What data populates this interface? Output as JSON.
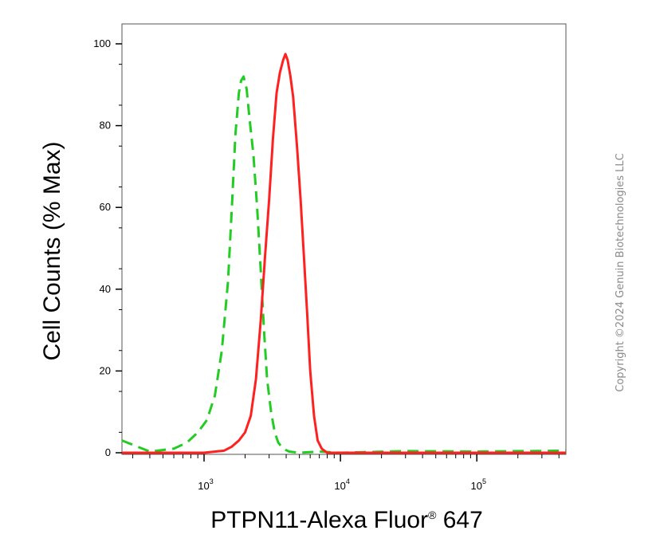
{
  "chart_data": {
    "type": "line",
    "title": "",
    "xlabel": "PTPN11-Alexa Fluor",
    "xlabel_mark": "®",
    "xlabel_suffix": " 647",
    "ylabel": "Cell Counts (% Max)",
    "x_scale": "log",
    "xlim": [
      250,
      450000
    ],
    "ylim": [
      0,
      100
    ],
    "y_ticks": [
      0,
      20,
      40,
      60,
      80,
      100
    ],
    "x_ticks": [
      {
        "base": "10",
        "exp": "3",
        "value": 1000
      },
      {
        "base": "10",
        "exp": "4",
        "value": 10000
      },
      {
        "base": "10",
        "exp": "5",
        "value": 100000
      }
    ],
    "grid": false,
    "legend": "none",
    "series": [
      {
        "color": "#22cc22",
        "style": "dashed",
        "x": [
          250,
          400,
          600,
          750,
          900,
          1050,
          1200,
          1350,
          1500,
          1600,
          1700,
          1800,
          1870,
          1950,
          2050,
          2150,
          2300,
          2450,
          2600,
          2750,
          2900,
          3100,
          3300,
          3500,
          3800,
          4200,
          5000,
          7000,
          10000,
          30000,
          100000,
          450000
        ],
        "y": [
          3,
          0.3,
          1,
          2.5,
          5,
          8,
          14,
          25,
          42,
          60,
          78,
          88,
          91,
          92,
          89,
          82,
          73,
          60,
          45,
          30,
          18,
          10,
          5,
          2.5,
          1,
          0.3,
          0,
          0.3,
          0,
          0.4,
          0.3,
          0.5
        ]
      },
      {
        "color": "#ff2020",
        "style": "solid",
        "x": [
          250,
          1000,
          1400,
          1600,
          1800,
          2000,
          2200,
          2400,
          2600,
          2800,
          3000,
          3200,
          3400,
          3600,
          3800,
          3950,
          4100,
          4300,
          4500,
          4800,
          5100,
          5400,
          5700,
          6000,
          6400,
          6800,
          7300,
          8000,
          10000,
          30000,
          100000,
          450000
        ],
        "y": [
          0,
          0,
          0.5,
          1.5,
          3,
          5,
          9,
          18,
          32,
          48,
          62,
          77,
          88,
          93,
          96,
          97.5,
          96,
          92,
          87,
          75,
          62,
          48,
          34,
          20,
          9,
          3,
          1,
          0,
          0,
          0,
          0,
          0
        ]
      }
    ]
  },
  "watermark": "Copyright ©2024 Genuin Biotechnologies LLC"
}
